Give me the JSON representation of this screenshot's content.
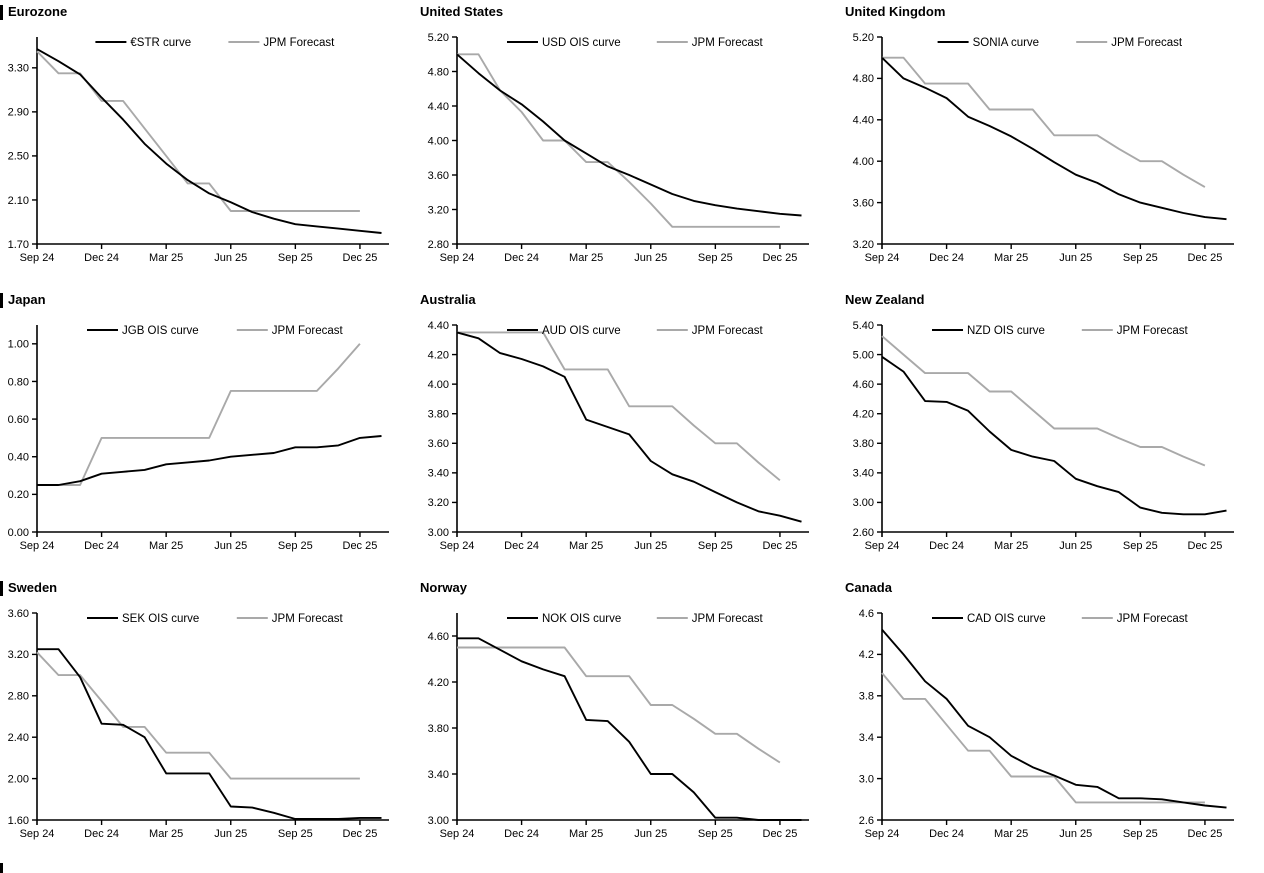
{
  "page": {
    "background": "#ffffff"
  },
  "colors": {
    "curve": "#000000",
    "forecast": "#a9a9a9",
    "axis": "#000000"
  },
  "chart_data": [
    {
      "type": "line",
      "title": "Eurozone",
      "section_bar": true,
      "ylim": [
        1.7,
        3.58
      ],
      "yticks": [
        1.7,
        2.1,
        2.5,
        2.9,
        3.3
      ],
      "ytick_decimals": 2,
      "x_tick_labels": [
        "Sep 24",
        "Dec 24",
        "Mar 25",
        "Jun 25",
        "Sep 25",
        "Dec 25"
      ],
      "x_tick_indices": [
        0,
        3,
        6,
        9,
        12,
        15
      ],
      "legend_position": "top",
      "grid": false,
      "series": [
        {
          "name": "€STR curve",
          "role": "curve",
          "values": [
            3.47,
            3.36,
            3.24,
            3.03,
            2.83,
            2.61,
            2.43,
            2.28,
            2.16,
            2.08,
            1.99,
            1.93,
            1.88,
            1.86,
            1.84,
            1.82,
            1.8
          ]
        },
        {
          "name": "JPM Forecast",
          "role": "forecast",
          "values": [
            3.45,
            3.25,
            3.25,
            3.0,
            3.0,
            2.75,
            2.5,
            2.25,
            2.25,
            2.0,
            2.0,
            2.0,
            2.0,
            2.0,
            2.0,
            2.0
          ]
        }
      ]
    },
    {
      "type": "line",
      "title": "United States",
      "section_bar": false,
      "ylim": [
        2.8,
        5.2
      ],
      "yticks": [
        2.8,
        3.2,
        3.6,
        4.0,
        4.4,
        4.8,
        5.2
      ],
      "ytick_decimals": 2,
      "x_tick_labels": [
        "Sep 24",
        "Dec 24",
        "Mar 25",
        "Jun 25",
        "Sep 25",
        "Dec 25"
      ],
      "x_tick_indices": [
        0,
        3,
        6,
        9,
        12,
        15
      ],
      "legend_position": "top",
      "grid": false,
      "series": [
        {
          "name": "USD OIS curve",
          "role": "curve",
          "values": [
            5.0,
            4.78,
            4.58,
            4.42,
            4.22,
            4.0,
            3.85,
            3.7,
            3.6,
            3.49,
            3.38,
            3.3,
            3.25,
            3.21,
            3.18,
            3.15,
            3.13
          ]
        },
        {
          "name": "JPM Forecast",
          "role": "forecast",
          "values": [
            5.0,
            5.0,
            4.58,
            4.33,
            4.0,
            4.0,
            3.75,
            3.75,
            3.52,
            3.27,
            3.0,
            3.0,
            3.0,
            3.0,
            3.0,
            3.0
          ]
        }
      ]
    },
    {
      "type": "line",
      "title": "United Kingdom",
      "section_bar": false,
      "ylim": [
        3.2,
        5.2
      ],
      "yticks": [
        3.2,
        3.6,
        4.0,
        4.4,
        4.8,
        5.2
      ],
      "ytick_decimals": 2,
      "x_tick_labels": [
        "Sep 24",
        "Dec 24",
        "Mar 25",
        "Jun 25",
        "Sep 25",
        "Dec 25"
      ],
      "x_tick_indices": [
        0,
        3,
        6,
        9,
        12,
        15
      ],
      "legend_position": "top",
      "grid": false,
      "series": [
        {
          "name": "SONIA curve",
          "role": "curve",
          "values": [
            5.0,
            4.8,
            4.71,
            4.61,
            4.43,
            4.34,
            4.24,
            4.12,
            3.99,
            3.87,
            3.79,
            3.68,
            3.6,
            3.55,
            3.5,
            3.46,
            3.44
          ]
        },
        {
          "name": "JPM Forecast",
          "role": "forecast",
          "values": [
            5.0,
            5.0,
            4.75,
            4.75,
            4.75,
            4.5,
            4.5,
            4.5,
            4.25,
            4.25,
            4.25,
            4.12,
            4.0,
            4.0,
            3.87,
            3.75
          ]
        }
      ]
    },
    {
      "type": "line",
      "title": "Japan",
      "section_bar": true,
      "ylim": [
        0.0,
        1.1
      ],
      "yticks": [
        0.0,
        0.2,
        0.4,
        0.6,
        0.8,
        1.0
      ],
      "ytick_decimals": 2,
      "x_tick_labels": [
        "Sep 24",
        "Dec 24",
        "Mar 25",
        "Jun 25",
        "Sep 25",
        "Dec 25"
      ],
      "x_tick_indices": [
        0,
        3,
        6,
        9,
        12,
        15
      ],
      "legend_position": "top",
      "grid": false,
      "series": [
        {
          "name": "JGB OIS curve",
          "role": "curve",
          "values": [
            0.25,
            0.25,
            0.27,
            0.31,
            0.32,
            0.33,
            0.36,
            0.37,
            0.38,
            0.4,
            0.41,
            0.42,
            0.45,
            0.45,
            0.46,
            0.5,
            0.51
          ]
        },
        {
          "name": "JPM Forecast",
          "role": "forecast",
          "values": [
            0.25,
            0.25,
            0.25,
            0.5,
            0.5,
            0.5,
            0.5,
            0.5,
            0.5,
            0.75,
            0.75,
            0.75,
            0.75,
            0.75,
            0.87,
            1.0
          ]
        }
      ]
    },
    {
      "type": "line",
      "title": "Australia",
      "section_bar": false,
      "ylim": [
        3.0,
        4.4
      ],
      "yticks": [
        3.0,
        3.2,
        3.4,
        3.6,
        3.8,
        4.0,
        4.2,
        4.4
      ],
      "ytick_decimals": 2,
      "x_tick_labels": [
        "Sep 24",
        "Dec 24",
        "Mar 25",
        "Jun 25",
        "Sep 25",
        "Dec 25"
      ],
      "x_tick_indices": [
        0,
        3,
        6,
        9,
        12,
        15
      ],
      "legend_position": "top",
      "grid": false,
      "series": [
        {
          "name": "AUD OIS curve",
          "role": "curve",
          "values": [
            4.35,
            4.31,
            4.21,
            4.17,
            4.12,
            4.05,
            3.76,
            3.71,
            3.66,
            3.48,
            3.39,
            3.34,
            3.27,
            3.2,
            3.14,
            3.11,
            3.07
          ]
        },
        {
          "name": "JPM Forecast",
          "role": "forecast",
          "values": [
            4.35,
            4.35,
            4.35,
            4.35,
            4.35,
            4.1,
            4.1,
            4.1,
            3.85,
            3.85,
            3.85,
            3.72,
            3.6,
            3.6,
            3.47,
            3.35
          ]
        }
      ]
    },
    {
      "type": "line",
      "title": "New Zealand",
      "section_bar": false,
      "ylim": [
        2.6,
        5.4
      ],
      "yticks": [
        2.6,
        3.0,
        3.4,
        3.8,
        4.2,
        4.6,
        5.0,
        5.4
      ],
      "ytick_decimals": 2,
      "x_tick_labels": [
        "Sep 24",
        "Dec 24",
        "Mar 25",
        "Jun 25",
        "Sep 25",
        "Dec 25"
      ],
      "x_tick_indices": [
        0,
        3,
        6,
        9,
        12,
        15
      ],
      "legend_position": "top",
      "grid": false,
      "series": [
        {
          "name": "NZD OIS curve",
          "role": "curve",
          "values": [
            4.97,
            4.77,
            4.37,
            4.36,
            4.24,
            3.96,
            3.71,
            3.62,
            3.56,
            3.32,
            3.22,
            3.14,
            2.93,
            2.86,
            2.84,
            2.84,
            2.89
          ]
        },
        {
          "name": "JPM Forecast",
          "role": "forecast",
          "values": [
            5.25,
            5.0,
            4.75,
            4.75,
            4.75,
            4.5,
            4.5,
            4.25,
            4.0,
            4.0,
            4.0,
            3.87,
            3.75,
            3.75,
            3.62,
            3.5
          ]
        }
      ]
    },
    {
      "type": "line",
      "title": "Sweden",
      "section_bar": true,
      "ylim": [
        1.6,
        3.6
      ],
      "yticks": [
        1.6,
        2.0,
        2.4,
        2.8,
        3.2,
        3.6
      ],
      "ytick_decimals": 2,
      "x_tick_labels": [
        "Sep 24",
        "Dec 24",
        "Mar 25",
        "Jun 25",
        "Sep 25",
        "Dec 25"
      ],
      "x_tick_indices": [
        0,
        3,
        6,
        9,
        12,
        15
      ],
      "legend_position": "top",
      "grid": false,
      "series": [
        {
          "name": "SEK OIS curve",
          "role": "curve",
          "values": [
            3.25,
            3.25,
            2.98,
            2.53,
            2.52,
            2.4,
            2.05,
            2.05,
            2.05,
            1.73,
            1.72,
            1.67,
            1.61,
            1.61,
            1.61,
            1.62,
            1.62
          ]
        },
        {
          "name": "JPM Forecast",
          "role": "forecast",
          "values": [
            3.22,
            3.0,
            3.0,
            2.75,
            2.5,
            2.5,
            2.25,
            2.25,
            2.25,
            2.0,
            2.0,
            2.0,
            2.0,
            2.0,
            2.0,
            2.0
          ]
        }
      ]
    },
    {
      "type": "line",
      "title": "Norway",
      "section_bar": false,
      "ylim": [
        3.0,
        4.8
      ],
      "yticks": [
        3.0,
        3.4,
        3.8,
        4.2,
        4.6
      ],
      "ytick_decimals": 2,
      "x_tick_labels": [
        "Sep 24",
        "Dec 24",
        "Mar 25",
        "Jun 25",
        "Sep 25",
        "Dec 25"
      ],
      "x_tick_indices": [
        0,
        3,
        6,
        9,
        12,
        15
      ],
      "legend_position": "top",
      "grid": false,
      "series": [
        {
          "name": "NOK OIS curve",
          "role": "curve",
          "values": [
            4.58,
            4.58,
            4.48,
            4.38,
            4.31,
            4.25,
            3.87,
            3.86,
            3.68,
            3.4,
            3.4,
            3.24,
            3.02,
            3.02,
            3.0,
            3.0,
            3.0
          ]
        },
        {
          "name": "JPM Forecast",
          "role": "forecast",
          "values": [
            4.5,
            4.5,
            4.5,
            4.5,
            4.5,
            4.5,
            4.25,
            4.25,
            4.25,
            4.0,
            4.0,
            3.88,
            3.75,
            3.75,
            3.62,
            3.5
          ]
        }
      ]
    },
    {
      "type": "line",
      "title": "Canada",
      "section_bar": false,
      "ylim": [
        2.6,
        4.6
      ],
      "yticks": [
        2.6,
        3.0,
        3.4,
        3.8,
        4.2,
        4.6
      ],
      "ytick_decimals": 1,
      "x_tick_labels": [
        "Sep 24",
        "Dec 24",
        "Mar 25",
        "Jun 25",
        "Sep 25",
        "Dec 25"
      ],
      "x_tick_indices": [
        0,
        3,
        6,
        9,
        12,
        15
      ],
      "legend_position": "top",
      "grid": false,
      "series": [
        {
          "name": "CAD OIS curve",
          "role": "curve",
          "values": [
            4.44,
            4.2,
            3.94,
            3.77,
            3.51,
            3.4,
            3.22,
            3.11,
            3.03,
            2.94,
            2.92,
            2.81,
            2.81,
            2.8,
            2.77,
            2.74,
            2.72
          ]
        },
        {
          "name": "JPM Forecast",
          "role": "forecast",
          "values": [
            4.02,
            3.77,
            3.77,
            3.52,
            3.27,
            3.27,
            3.02,
            3.02,
            3.02,
            2.77,
            2.77,
            2.77,
            2.77,
            2.77,
            2.77,
            2.77
          ]
        }
      ]
    }
  ]
}
